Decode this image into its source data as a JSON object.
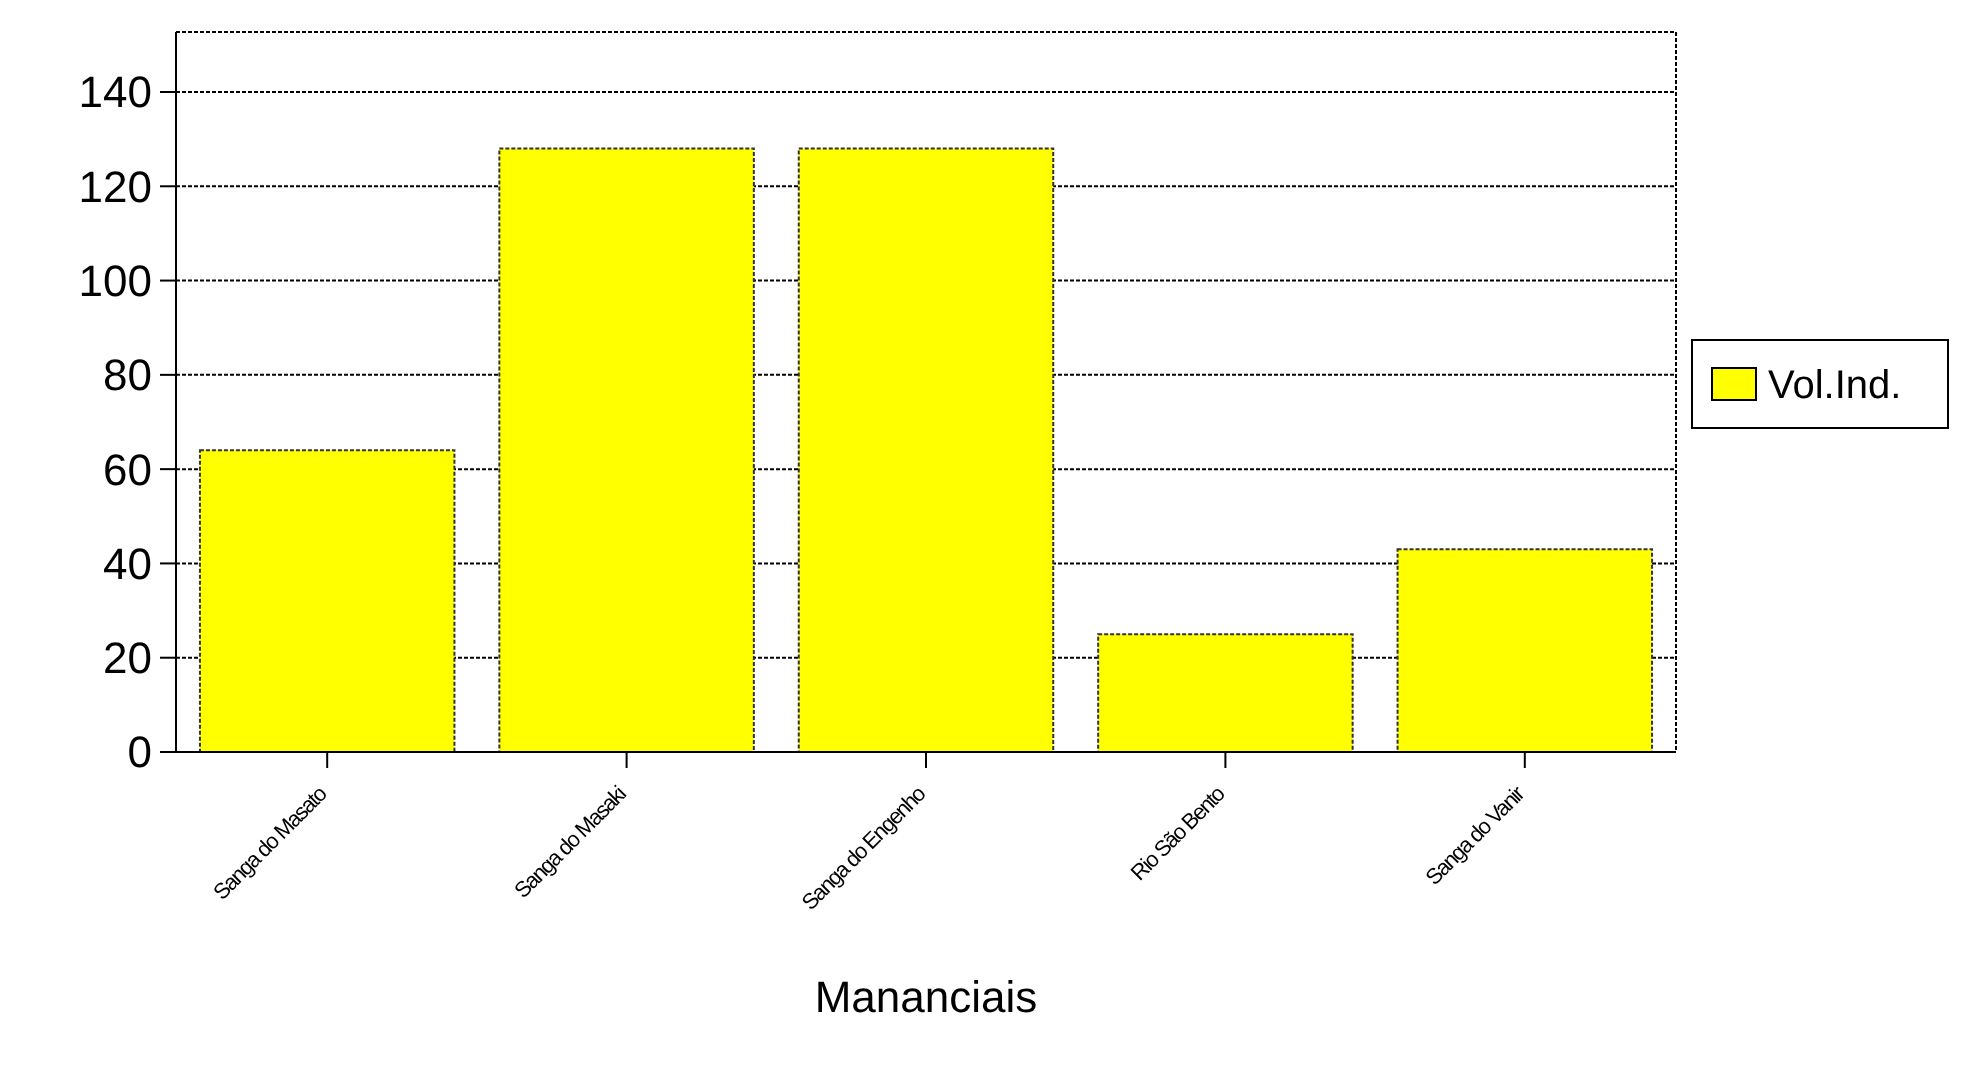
{
  "chart_data": {
    "type": "bar",
    "xlabel": "Mananciais",
    "categories": [
      "Sanga do Masato",
      "Sanga do Masaki",
      "Sanga do Engenho",
      "Rio São Bento",
      "Sanga do Vanir"
    ],
    "series": [
      {
        "name": "Vol.Ind.",
        "color": "#ffff00",
        "values": [
          64,
          128,
          128,
          25,
          43
        ]
      }
    ],
    "ylim": [
      0,
      140
    ],
    "yticks": [
      0,
      20,
      40,
      60,
      80,
      100,
      120,
      140
    ],
    "grid": "y",
    "legend": "right"
  }
}
